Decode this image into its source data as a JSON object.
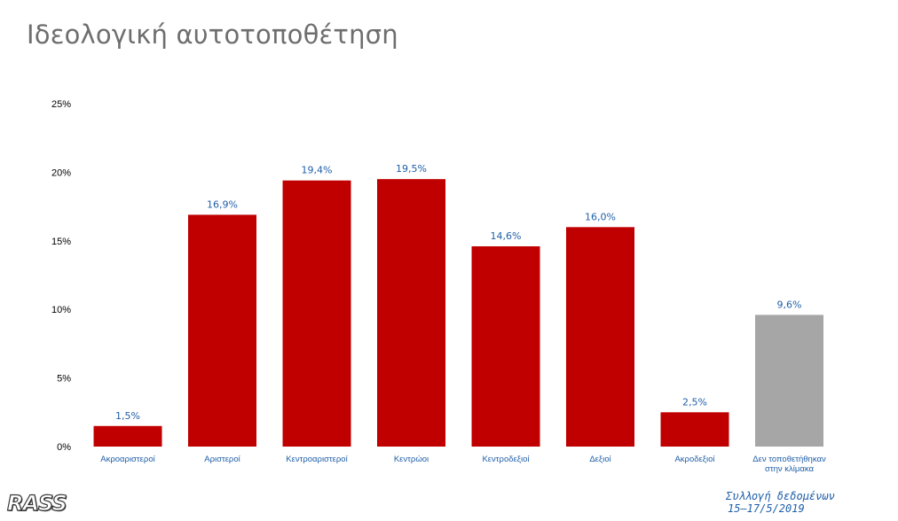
{
  "title": "Ιδεολογική αυτοτοποθέτηση",
  "logo_text": "RASS",
  "footer": {
    "line1": "Συλλογή δεδομένων",
    "line2": "15–17/5/2019"
  },
  "colors": {
    "bar_primary": "#c00000",
    "bar_secondary": "#a6a6a6",
    "data_label": "#1f5fa8",
    "category_label": "#1f5fa8"
  },
  "chart_data": {
    "type": "bar",
    "categories": [
      "Ακροαριστεροί",
      "Αριστεροί",
      "Κεντροαριστεροί",
      "Κεντρώοι",
      "Κεντροδεξιοί",
      "Δεξιοί",
      "Ακροδεξιοί",
      "Δεν τοποθετήθηκαν στην κλίμακα"
    ],
    "values": [
      1.5,
      16.9,
      19.4,
      19.5,
      14.6,
      16.0,
      2.5,
      9.6
    ],
    "value_labels": [
      "1,5%",
      "16,9%",
      "19,4%",
      "19,5%",
      "14,6%",
      "16,0%",
      "2,5%",
      "9,6%"
    ],
    "bar_colors": [
      "#c00000",
      "#c00000",
      "#c00000",
      "#c00000",
      "#c00000",
      "#c00000",
      "#c00000",
      "#a6a6a6"
    ],
    "yticks": [
      "0%",
      "5%",
      "10%",
      "15%",
      "20%",
      "25%"
    ],
    "ylim": [
      0,
      25
    ],
    "grid": false,
    "legend": "none"
  }
}
